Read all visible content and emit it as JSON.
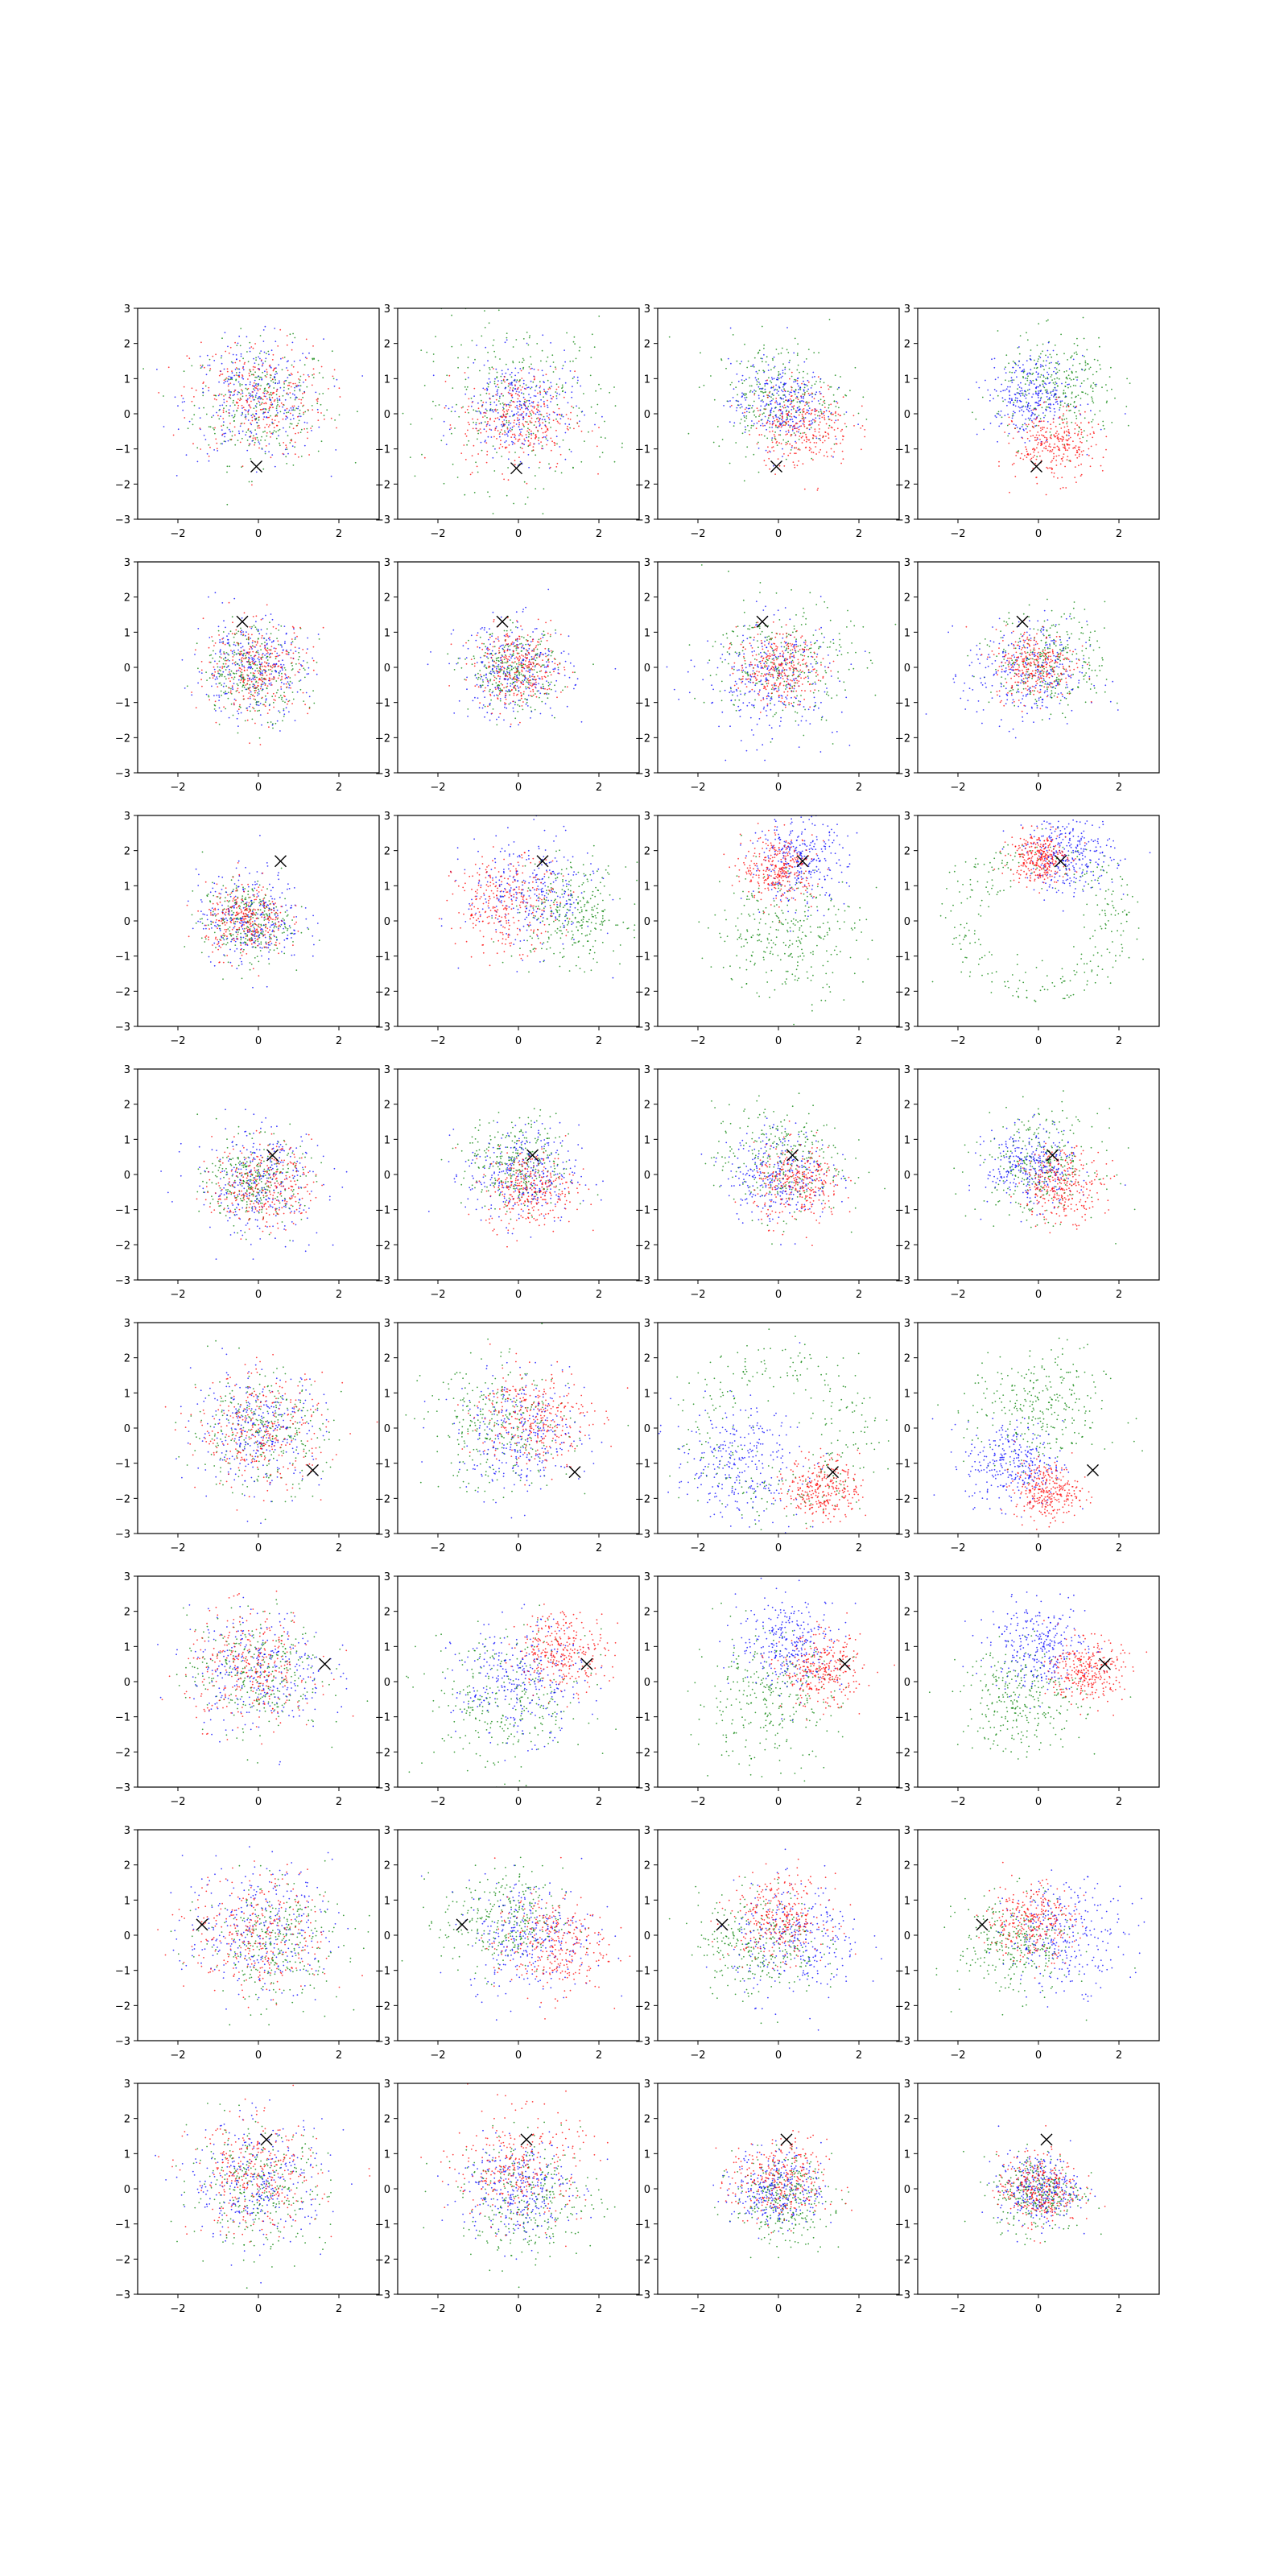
{
  "figure": {
    "rows": 8,
    "cols": 4
  },
  "chart_data": {
    "type": "scatter",
    "title": "",
    "xlabel": "",
    "ylabel": "",
    "xlim": [
      -3,
      3
    ],
    "ylim": [
      -3,
      3
    ],
    "xticks": [
      -2,
      0,
      2
    ],
    "yticks": [
      -3,
      -2,
      -1,
      0,
      1,
      2,
      3
    ],
    "grid": false,
    "legend": "none",
    "colors": {
      "blue": "#0000ff",
      "red": "#ff0000",
      "green": "#008000",
      "marker": "#000000"
    },
    "marker_symbol": "x",
    "points_per_series": 300,
    "panels": [
      {
        "row": 0,
        "col": 0,
        "marker": [
          -0.05,
          -1.5
        ],
        "series": [
          {
            "color": "green",
            "cx": 0.1,
            "cy": 0.3,
            "sd": 0.85
          },
          {
            "color": "blue",
            "cx": -0.1,
            "cy": 0.4,
            "sd": 0.85
          },
          {
            "color": "red",
            "cx": 0.0,
            "cy": 0.4,
            "sd": 0.85
          }
        ]
      },
      {
        "row": 0,
        "col": 1,
        "marker": [
          -0.05,
          -1.55
        ],
        "series": [
          {
            "color": "green",
            "cx": 0.0,
            "cy": 0.3,
            "sd": 1.2
          },
          {
            "color": "blue",
            "cx": 0.0,
            "cy": 0.2,
            "sd": 0.7
          },
          {
            "color": "red",
            "cx": 0.0,
            "cy": -0.2,
            "sd": 0.7
          }
        ]
      },
      {
        "row": 0,
        "col": 2,
        "marker": [
          -0.05,
          -1.5
        ],
        "series": [
          {
            "color": "green",
            "cx": 0.0,
            "cy": 0.5,
            "sd": 0.8
          },
          {
            "color": "blue",
            "cx": 0.0,
            "cy": 0.3,
            "sd": 0.6
          },
          {
            "color": "red",
            "cx": 0.6,
            "cy": -0.3,
            "sd": 0.6
          }
        ]
      },
      {
        "row": 0,
        "col": 3,
        "marker": [
          -0.05,
          -1.5
        ],
        "series": [
          {
            "color": "green",
            "cx": 0.5,
            "cy": 0.7,
            "sd": 0.75
          },
          {
            "color": "blue",
            "cx": -0.2,
            "cy": 0.5,
            "sd": 0.55
          },
          {
            "color": "red",
            "cx": 0.4,
            "cy": -0.9,
            "sd": 0.5
          }
        ]
      },
      {
        "row": 1,
        "col": 0,
        "marker": [
          -0.4,
          1.3
        ],
        "series": [
          {
            "color": "green",
            "cx": -0.1,
            "cy": -0.1,
            "sd": 0.65
          },
          {
            "color": "blue",
            "cx": -0.2,
            "cy": 0.0,
            "sd": 0.7
          },
          {
            "color": "red",
            "cx": 0.0,
            "cy": 0.0,
            "sd": 0.65
          }
        ]
      },
      {
        "row": 1,
        "col": 1,
        "marker": [
          -0.4,
          1.3
        ],
        "series": [
          {
            "color": "green",
            "cx": -0.1,
            "cy": -0.1,
            "sd": 0.55
          },
          {
            "color": "blue",
            "cx": -0.1,
            "cy": -0.1,
            "sd": 0.7
          },
          {
            "color": "red",
            "cx": 0.0,
            "cy": 0.0,
            "sd": 0.55
          }
        ]
      },
      {
        "row": 1,
        "col": 2,
        "marker": [
          -0.4,
          1.3
        ],
        "series": [
          {
            "color": "green",
            "cx": 0.1,
            "cy": 0.2,
            "sd": 0.85
          },
          {
            "color": "blue",
            "cx": -0.2,
            "cy": -0.3,
            "sd": 0.85
          },
          {
            "color": "red",
            "cx": 0.0,
            "cy": 0.0,
            "sd": 0.5
          }
        ]
      },
      {
        "row": 1,
        "col": 3,
        "marker": [
          -0.4,
          1.3
        ],
        "series": [
          {
            "color": "green",
            "cx": 0.3,
            "cy": 0.2,
            "sd": 0.7
          },
          {
            "color": "blue",
            "cx": -0.3,
            "cy": -0.2,
            "sd": 0.75
          },
          {
            "color": "red",
            "cx": -0.1,
            "cy": 0.1,
            "sd": 0.5
          }
        ]
      },
      {
        "row": 2,
        "col": 0,
        "marker": [
          0.55,
          1.7
        ],
        "series": [
          {
            "color": "green",
            "cx": -0.3,
            "cy": 0.0,
            "sd": 0.55
          },
          {
            "color": "blue",
            "cx": -0.2,
            "cy": 0.1,
            "sd": 0.65
          },
          {
            "color": "red",
            "cx": -0.3,
            "cy": 0.0,
            "sd": 0.5
          }
        ]
      },
      {
        "row": 2,
        "col": 1,
        "marker": [
          0.6,
          1.7
        ],
        "series": [
          {
            "color": "green",
            "cx": 1.3,
            "cy": 0.2,
            "sd": 0.7
          },
          {
            "color": "blue",
            "cx": 0.3,
            "cy": 0.8,
            "sd": 0.8
          },
          {
            "color": "red",
            "cx": -0.3,
            "cy": 0.5,
            "sd": 0.65
          }
        ]
      },
      {
        "row": 2,
        "col": 2,
        "marker": [
          0.6,
          1.7
        ],
        "series": [
          {
            "color": "green",
            "cx": 0.2,
            "cy": -0.3,
            "sd": 0.9
          },
          {
            "color": "blue",
            "cx": 0.5,
            "cy": 1.7,
            "sd": 0.6
          },
          {
            "color": "red",
            "cx": 0.0,
            "cy": 1.5,
            "sd": 0.45
          }
        ]
      },
      {
        "row": 2,
        "col": 3,
        "marker": [
          0.55,
          1.7
        ],
        "ring": {
          "color": "green",
          "r": 1.9,
          "w": 0.35
        },
        "series": [
          {
            "color": "blue",
            "cx": 0.8,
            "cy": 1.9,
            "sd": 0.55
          },
          {
            "color": "red",
            "cx": 0.0,
            "cy": 1.8,
            "sd": 0.35
          }
        ]
      },
      {
        "row": 3,
        "col": 0,
        "marker": [
          0.35,
          0.55
        ],
        "series": [
          {
            "color": "green",
            "cx": -0.1,
            "cy": -0.2,
            "sd": 0.6
          },
          {
            "color": "blue",
            "cx": 0.0,
            "cy": -0.2,
            "sd": 0.8
          },
          {
            "color": "red",
            "cx": 0.1,
            "cy": -0.3,
            "sd": 0.6
          }
        ]
      },
      {
        "row": 3,
        "col": 1,
        "marker": [
          0.35,
          0.55
        ],
        "series": [
          {
            "color": "green",
            "cx": 0.0,
            "cy": 0.3,
            "sd": 0.65
          },
          {
            "color": "blue",
            "cx": 0.1,
            "cy": 0.0,
            "sd": 0.7
          },
          {
            "color": "red",
            "cx": 0.3,
            "cy": -0.4,
            "sd": 0.55
          }
        ]
      },
      {
        "row": 3,
        "col": 2,
        "marker": [
          0.35,
          0.55
        ],
        "series": [
          {
            "color": "green",
            "cx": 0.0,
            "cy": 0.4,
            "sd": 0.8
          },
          {
            "color": "blue",
            "cx": 0.0,
            "cy": 0.0,
            "sd": 0.65
          },
          {
            "color": "red",
            "cx": 0.5,
            "cy": -0.3,
            "sd": 0.55
          }
        ]
      },
      {
        "row": 3,
        "col": 3,
        "marker": [
          0.35,
          0.55
        ],
        "series": [
          {
            "color": "green",
            "cx": 0.0,
            "cy": 0.3,
            "sd": 0.75
          },
          {
            "color": "blue",
            "cx": -0.2,
            "cy": 0.2,
            "sd": 0.55
          },
          {
            "color": "red",
            "cx": 0.6,
            "cy": -0.3,
            "sd": 0.5
          }
        ]
      },
      {
        "row": 4,
        "col": 0,
        "marker": [
          1.35,
          -1.2
        ],
        "series": [
          {
            "color": "green",
            "cx": 0.0,
            "cy": -0.1,
            "sd": 0.85
          },
          {
            "color": "blue",
            "cx": 0.0,
            "cy": 0.0,
            "sd": 0.8
          },
          {
            "color": "red",
            "cx": 0.1,
            "cy": -0.1,
            "sd": 0.8
          }
        ]
      },
      {
        "row": 4,
        "col": 1,
        "marker": [
          1.4,
          -1.25
        ],
        "series": [
          {
            "color": "green",
            "cx": -0.5,
            "cy": 0.0,
            "sd": 0.9
          },
          {
            "color": "blue",
            "cx": 0.1,
            "cy": -0.2,
            "sd": 0.8
          },
          {
            "color": "red",
            "cx": 0.4,
            "cy": 0.3,
            "sd": 0.7
          }
        ]
      },
      {
        "row": 4,
        "col": 2,
        "marker": [
          1.35,
          -1.25
        ],
        "ring": {
          "color": "green",
          "r": 1.9,
          "w": 0.45
        },
        "series": [
          {
            "color": "blue",
            "cx": -1.0,
            "cy": -1.0,
            "sd": 0.8
          },
          {
            "color": "red",
            "cx": 1.1,
            "cy": -1.7,
            "sd": 0.45
          }
        ]
      },
      {
        "row": 4,
        "col": 3,
        "marker": [
          1.35,
          -1.2
        ],
        "series": [
          {
            "color": "green",
            "cx": 0.0,
            "cy": 0.5,
            "sd": 0.85
          },
          {
            "color": "blue",
            "cx": -0.6,
            "cy": -1.0,
            "sd": 0.6
          },
          {
            "color": "red",
            "cx": 0.2,
            "cy": -1.8,
            "sd": 0.4
          }
        ]
      },
      {
        "row": 5,
        "col": 0,
        "marker": [
          1.65,
          0.5
        ],
        "series": [
          {
            "color": "green",
            "cx": -0.1,
            "cy": 0.3,
            "sd": 0.85
          },
          {
            "color": "blue",
            "cx": 0.0,
            "cy": 0.3,
            "sd": 0.85
          },
          {
            "color": "red",
            "cx": -0.2,
            "cy": 0.4,
            "sd": 0.8
          }
        ]
      },
      {
        "row": 5,
        "col": 1,
        "marker": [
          1.7,
          0.5
        ],
        "series": [
          {
            "color": "green",
            "cx": -0.3,
            "cy": -0.6,
            "sd": 1.0
          },
          {
            "color": "blue",
            "cx": 0.0,
            "cy": 0.0,
            "sd": 0.8
          },
          {
            "color": "red",
            "cx": 1.1,
            "cy": 0.9,
            "sd": 0.55
          }
        ]
      },
      {
        "row": 5,
        "col": 2,
        "marker": [
          1.65,
          0.5
        ],
        "series": [
          {
            "color": "green",
            "cx": -0.3,
            "cy": -0.5,
            "sd": 0.9
          },
          {
            "color": "blue",
            "cx": 0.3,
            "cy": 1.1,
            "sd": 0.65
          },
          {
            "color": "red",
            "cx": 1.1,
            "cy": 0.3,
            "sd": 0.5
          }
        ]
      },
      {
        "row": 5,
        "col": 3,
        "marker": [
          1.65,
          0.5
        ],
        "series": [
          {
            "color": "green",
            "cx": -0.4,
            "cy": -0.5,
            "sd": 0.75
          },
          {
            "color": "blue",
            "cx": 0.0,
            "cy": 1.0,
            "sd": 0.6
          },
          {
            "color": "red",
            "cx": 1.2,
            "cy": 0.3,
            "sd": 0.45
          }
        ]
      },
      {
        "row": 6,
        "col": 0,
        "marker": [
          -1.4,
          0.3
        ],
        "series": [
          {
            "color": "green",
            "cx": 0.4,
            "cy": -0.2,
            "sd": 0.85
          },
          {
            "color": "blue",
            "cx": 0.0,
            "cy": 0.2,
            "sd": 0.9
          },
          {
            "color": "red",
            "cx": 0.0,
            "cy": 0.0,
            "sd": 0.85
          }
        ]
      },
      {
        "row": 6,
        "col": 1,
        "marker": [
          -1.4,
          0.3
        ],
        "series": [
          {
            "color": "green",
            "cx": -0.4,
            "cy": 0.4,
            "sd": 0.75
          },
          {
            "color": "blue",
            "cx": 0.3,
            "cy": 0.0,
            "sd": 0.8
          },
          {
            "color": "red",
            "cx": 0.8,
            "cy": -0.3,
            "sd": 0.7
          }
        ]
      },
      {
        "row": 6,
        "col": 2,
        "marker": [
          -1.4,
          0.3
        ],
        "series": [
          {
            "color": "green",
            "cx": -0.5,
            "cy": -0.2,
            "sd": 0.75
          },
          {
            "color": "blue",
            "cx": 0.5,
            "cy": -0.2,
            "sd": 0.8
          },
          {
            "color": "red",
            "cx": 0.0,
            "cy": 0.5,
            "sd": 0.6
          }
        ]
      },
      {
        "row": 6,
        "col": 3,
        "marker": [
          -1.4,
          0.3
        ],
        "series": [
          {
            "color": "green",
            "cx": -0.6,
            "cy": -0.3,
            "sd": 0.7
          },
          {
            "color": "blue",
            "cx": 0.7,
            "cy": 0.0,
            "sd": 0.75
          },
          {
            "color": "red",
            "cx": -0.2,
            "cy": 0.4,
            "sd": 0.55
          }
        ]
      },
      {
        "row": 7,
        "col": 0,
        "marker": [
          0.2,
          1.4
        ],
        "series": [
          {
            "color": "green",
            "cx": 0.0,
            "cy": 0.0,
            "sd": 0.85
          },
          {
            "color": "blue",
            "cx": 0.0,
            "cy": 0.2,
            "sd": 0.85
          },
          {
            "color": "red",
            "cx": -0.1,
            "cy": 0.3,
            "sd": 0.8
          }
        ]
      },
      {
        "row": 7,
        "col": 1,
        "marker": [
          0.2,
          1.4
        ],
        "series": [
          {
            "color": "green",
            "cx": 0.3,
            "cy": -0.3,
            "sd": 0.85
          },
          {
            "color": "blue",
            "cx": -0.1,
            "cy": 0.0,
            "sd": 0.7
          },
          {
            "color": "red",
            "cx": 0.0,
            "cy": 0.6,
            "sd": 0.8
          }
        ]
      },
      {
        "row": 7,
        "col": 2,
        "marker": [
          0.2,
          1.4
        ],
        "series": [
          {
            "color": "green",
            "cx": 0.1,
            "cy": -0.3,
            "sd": 0.6
          },
          {
            "color": "blue",
            "cx": 0.0,
            "cy": 0.0,
            "sd": 0.55
          },
          {
            "color": "red",
            "cx": 0.0,
            "cy": 0.2,
            "sd": 0.6
          }
        ]
      },
      {
        "row": 7,
        "col": 3,
        "marker": [
          0.2,
          1.4
        ],
        "series": [
          {
            "color": "green",
            "cx": 0.0,
            "cy": -0.1,
            "sd": 0.55
          },
          {
            "color": "blue",
            "cx": 0.0,
            "cy": 0.0,
            "sd": 0.5
          },
          {
            "color": "red",
            "cx": 0.0,
            "cy": 0.0,
            "sd": 0.5
          }
        ]
      }
    ]
  }
}
